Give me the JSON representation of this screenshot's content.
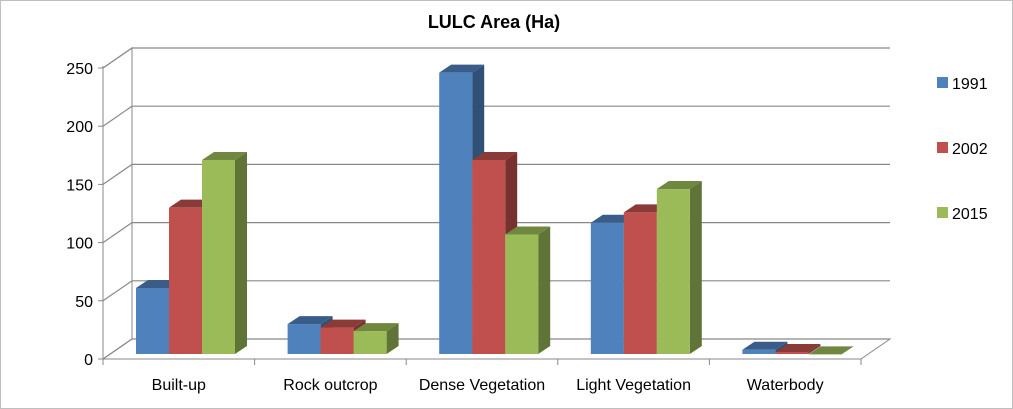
{
  "chart_data": {
    "type": "bar",
    "title": "LULC Area (Ha)",
    "xlabel": "",
    "ylabel": "",
    "categories": [
      "Built-up",
      "Rock outcrop",
      "Dense Vegetation",
      "Light Vegetation",
      "Waterbody"
    ],
    "series": [
      {
        "name": "1991",
        "values": [
          61,
          30,
          246,
          117,
          8
        ],
        "color": "#4f81bd"
      },
      {
        "name": "2002",
        "values": [
          130,
          27,
          171,
          126,
          6
        ],
        "color": "#c0504d"
      },
      {
        "name": "2015",
        "values": [
          171,
          24,
          107,
          146,
          4
        ],
        "color": "#9bbb59"
      }
    ],
    "ylim": [
      0,
      250
    ],
    "yticks": [
      "0",
      "50",
      "100",
      "150",
      "200",
      "250"
    ],
    "grid": true,
    "legend_position": "right",
    "style": "3d-clustered-column"
  }
}
